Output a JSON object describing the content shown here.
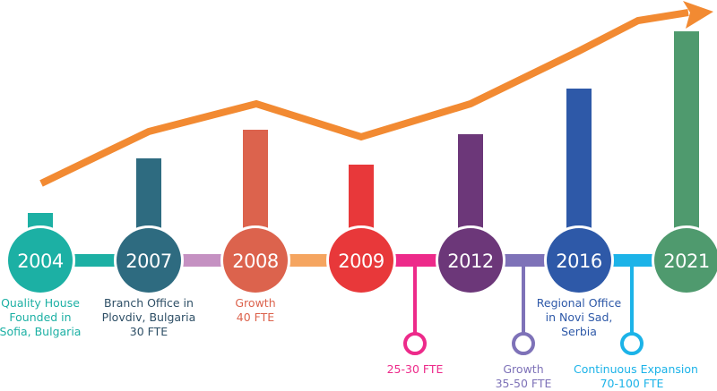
{
  "milestones": [
    {
      "year": "2004",
      "color": "#1cb0a4",
      "label_lines": [
        "Quality House",
        "Founded in",
        "Sofia, Bulgaria"
      ]
    },
    {
      "year": "2007",
      "color": "#2e6b80",
      "label_lines": [
        "Branch Office in",
        "Plovdiv, Bulgaria",
        "30 FTE"
      ]
    },
    {
      "year": "2008",
      "color": "#dc634d",
      "label_lines": [
        "Growth",
        "40 FTE"
      ]
    },
    {
      "year": "2009",
      "color": "#e8383a",
      "label_lines": [
        "25-30 FTE"
      ]
    },
    {
      "year": "2012",
      "color": "#6c3779",
      "label_lines": [
        "Growth",
        "35-50 FTE"
      ]
    },
    {
      "year": "2016",
      "color": "#2e59a8",
      "label_lines": [
        "Regional Office",
        "in Novi Sad,",
        "Serbia"
      ]
    },
    {
      "year": "2021",
      "color": "#4f9a6e",
      "label_lines": [
        "Continuous Expansion",
        "70-100 FTE"
      ]
    }
  ],
  "connector_colors": [
    "#1cb0a4",
    "#c591c2",
    "#f5a560",
    "#ed2a8a",
    "#7e72b8",
    "#1cb3e8"
  ],
  "trend_color": "#f28a32"
}
